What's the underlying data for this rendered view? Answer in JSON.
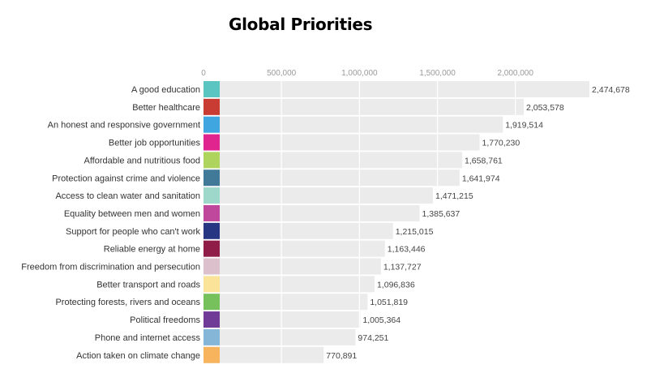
{
  "chart_data": {
    "type": "bar",
    "orientation": "horizontal",
    "title": "Global Priorities",
    "xlabel": "",
    "ylabel": "",
    "xlim": [
      0,
      2474678
    ],
    "x_ticks": [
      0,
      500000,
      1000000,
      1500000,
      2000000
    ],
    "x_tick_labels": [
      "0",
      "500,000",
      "1,000,000",
      "1,500,000",
      "2,000,000"
    ],
    "grid": true,
    "categories": [
      "A good education",
      "Better healthcare",
      "An honest and responsive government",
      "Better job opportunities",
      "Affordable and nutritious food",
      "Protection against crime and violence",
      "Access to clean water and sanitation",
      "Equality between men and women",
      "Support for people who can't work",
      "Reliable energy at home",
      "Freedom from discrimination and persecution",
      "Better transport and roads",
      "Protecting forests, rivers and oceans",
      "Political freedoms",
      "Phone and internet access",
      "Action taken on climate change"
    ],
    "values": [
      2474678,
      2053578,
      1919514,
      1770230,
      1658761,
      1641974,
      1471215,
      1385637,
      1215015,
      1163446,
      1137727,
      1096836,
      1051819,
      1005364,
      974251,
      770891
    ],
    "value_labels": [
      "2,474,678",
      "2,053,578",
      "1,919,514",
      "1,770,230",
      "1,658,761",
      "1,641,974",
      "1,471,215",
      "1,385,637",
      "1,215,015",
      "1,163,446",
      "1,137,727",
      "1,096,836",
      "1,051,819",
      "1,005,364",
      "974,251",
      "770,891"
    ],
    "category_colors": [
      "#5bc5c1",
      "#c93c33",
      "#3fa6e0",
      "#e0268e",
      "#afd45d",
      "#417a99",
      "#9ed8cb",
      "#c0489c",
      "#263682",
      "#8f1d47",
      "#dcc0cb",
      "#fbe39a",
      "#77c15d",
      "#6f3b97",
      "#85b6d8",
      "#f7b45d"
    ],
    "bar_color": "#ebebeb",
    "grid_color": "#ffffff"
  }
}
